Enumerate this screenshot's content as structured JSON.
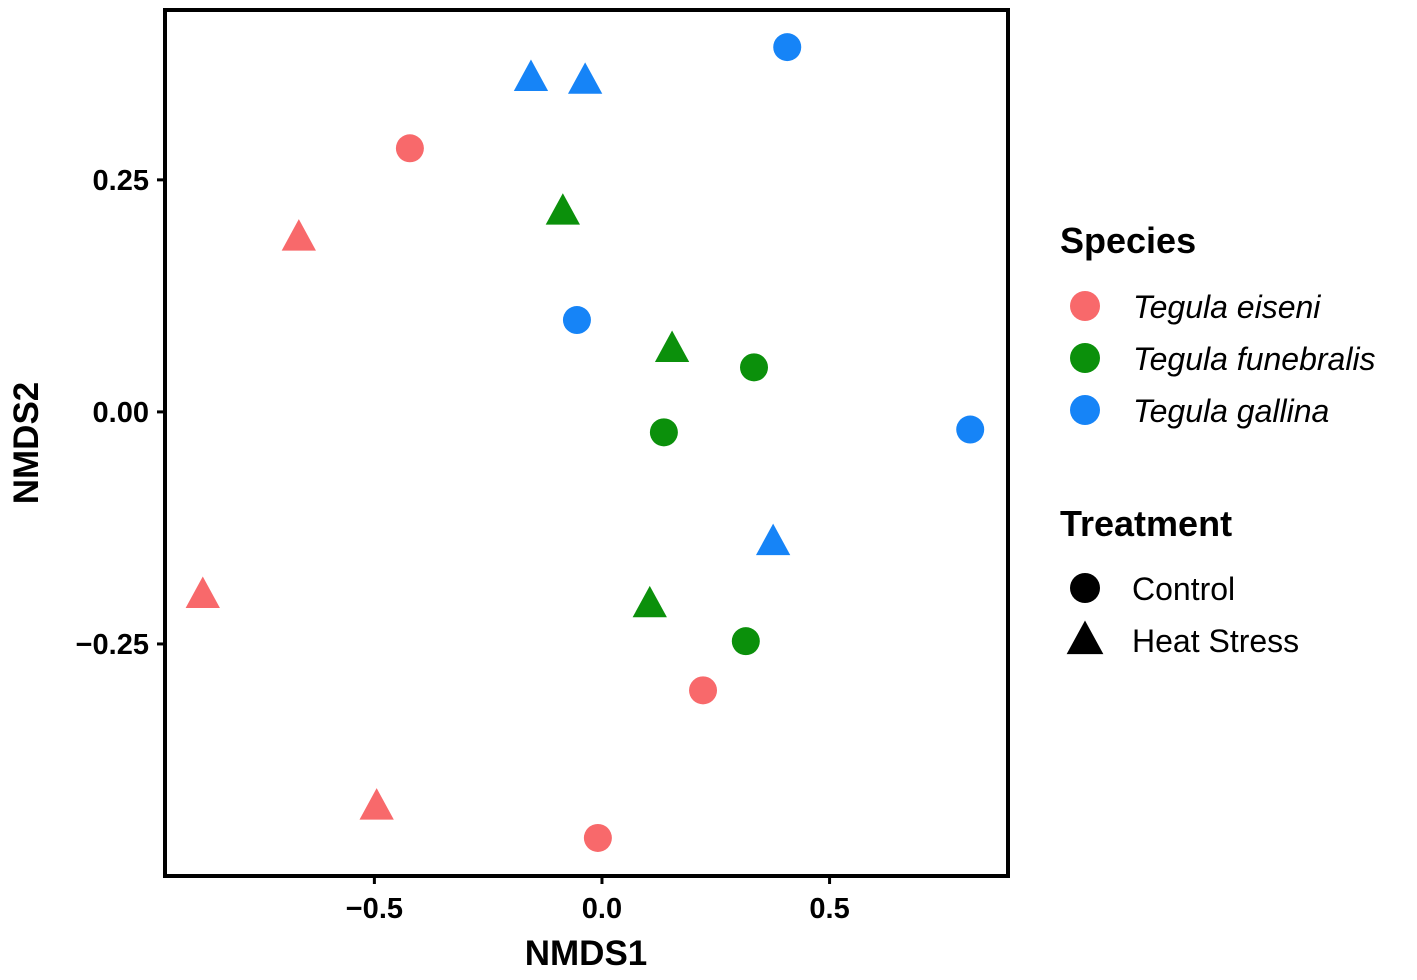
{
  "chart_data": {
    "type": "scatter",
    "xlabel": "NMDS1",
    "ylabel": "NMDS2",
    "xlim": [
      -0.96,
      0.892
    ],
    "ylim": [
      -0.5,
      0.433
    ],
    "xticks": [
      {
        "v": -0.5,
        "label": "−0.5"
      },
      {
        "v": 0.0,
        "label": "0.0"
      },
      {
        "v": 0.5,
        "label": "0.5"
      }
    ],
    "yticks": [
      {
        "v": 0.25,
        "label": "0.25"
      },
      {
        "v": 0.0,
        "label": "0.00"
      },
      {
        "v": -0.25,
        "label": "−0.25"
      }
    ],
    "grid": false,
    "legend_placement": "right",
    "legend": {
      "species_title": "Species",
      "species": [
        {
          "name": "Tegula eiseni",
          "color": "#F8696B"
        },
        {
          "name": "Tegula funebralis",
          "color": "#0B900B"
        },
        {
          "name": "Tegula gallina",
          "color": "#1684F7"
        }
      ],
      "treatment_title": "Treatment",
      "treatments": [
        {
          "name": "Control",
          "shape": "circle"
        },
        {
          "name": "Heat Stress",
          "shape": "triangle"
        }
      ]
    },
    "points": [
      {
        "species": 0,
        "treatment": 0,
        "x": -0.422,
        "y": 0.284
      },
      {
        "species": 0,
        "treatment": 0,
        "x": 0.222,
        "y": -0.3
      },
      {
        "species": 0,
        "treatment": 0,
        "x": -0.009,
        "y": -0.459
      },
      {
        "species": 0,
        "treatment": 1,
        "x": -0.666,
        "y": 0.188
      },
      {
        "species": 0,
        "treatment": 1,
        "x": -0.877,
        "y": -0.197
      },
      {
        "species": 0,
        "treatment": 1,
        "x": -0.495,
        "y": -0.425
      },
      {
        "species": 1,
        "treatment": 0,
        "x": 0.334,
        "y": 0.048
      },
      {
        "species": 1,
        "treatment": 0,
        "x": 0.136,
        "y": -0.022
      },
      {
        "species": 1,
        "treatment": 0,
        "x": 0.316,
        "y": -0.247
      },
      {
        "species": 1,
        "treatment": 1,
        "x": -0.086,
        "y": 0.216
      },
      {
        "species": 1,
        "treatment": 1,
        "x": 0.154,
        "y": 0.068
      },
      {
        "species": 1,
        "treatment": 1,
        "x": 0.105,
        "y": -0.207
      },
      {
        "species": 2,
        "treatment": 0,
        "x": 0.407,
        "y": 0.393
      },
      {
        "species": 2,
        "treatment": 0,
        "x": -0.055,
        "y": 0.099
      },
      {
        "species": 2,
        "treatment": 0,
        "x": 0.809,
        "y": -0.019
      },
      {
        "species": 2,
        "treatment": 1,
        "x": -0.156,
        "y": 0.36
      },
      {
        "species": 2,
        "treatment": 1,
        "x": -0.037,
        "y": 0.357
      },
      {
        "species": 2,
        "treatment": 1,
        "x": 0.376,
        "y": -0.14
      }
    ]
  }
}
